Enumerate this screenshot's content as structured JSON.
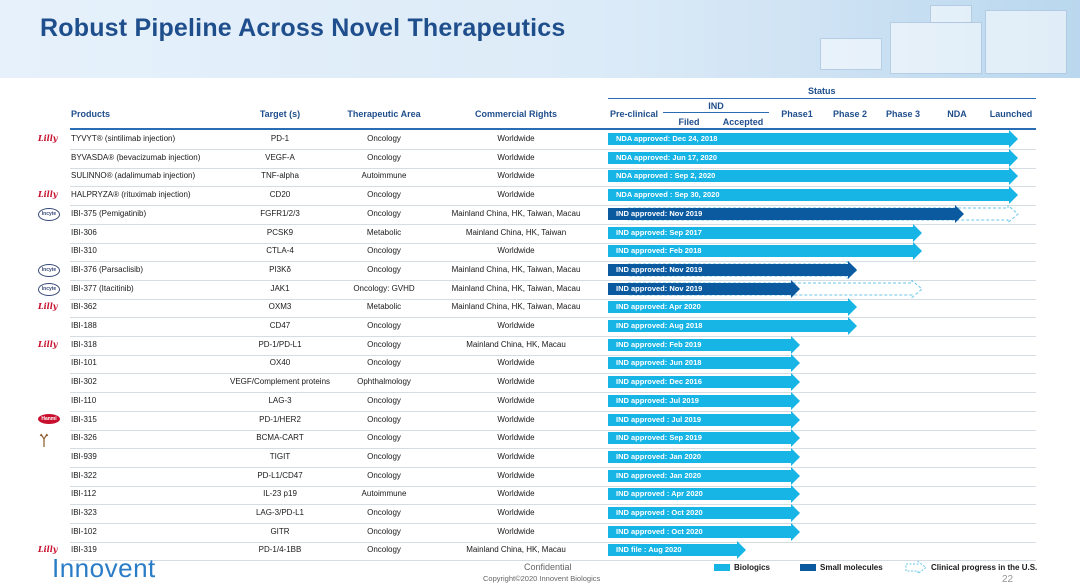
{
  "title": "Robust Pipeline Across Novel Therapeutics",
  "status_label": "Status",
  "ind_label": "IND",
  "columns": {
    "products": "Products",
    "target": "Target (s)",
    "therapeutic_area": "Therapeutic Area",
    "commercial_rights": "Commercial Rights",
    "preclinical": "Pre-clinical",
    "ind_filed": "Filed",
    "ind_accepted": "Accepted",
    "phase1": "Phase1",
    "phase2": "Phase 2",
    "phase3": "Phase 3",
    "nda": "NDA",
    "launched": "Launched"
  },
  "rows": [
    {
      "partner": "Lilly",
      "product": "TYVYT® (sintilimab injection)",
      "target": "PD-1",
      "area": "Oncology",
      "rights": "Worldwide",
      "status": "NDA approved: Dec 24, 2018",
      "stage": "Launched",
      "modality": "biologics",
      "us_progress": ""
    },
    {
      "partner": "",
      "product": "BYVASDA® (bevacizumab  injection)",
      "target": "VEGF-A",
      "area": "Oncology",
      "rights": "Worldwide",
      "status": "NDA approved: Jun 17, 2020",
      "stage": "Launched",
      "modality": "biologics",
      "us_progress": ""
    },
    {
      "partner": "",
      "product": "SULINNO® (adalimumab injection)",
      "target": "TNF-alpha",
      "area": "Autoimmune",
      "rights": "Worldwide",
      "status": "NDA approved : Sep 2, 2020",
      "stage": "Launched",
      "modality": "biologics",
      "us_progress": ""
    },
    {
      "partner": "Lilly",
      "product": "HALPRYZA® (rituximab injection)",
      "target": "CD20",
      "area": "Oncology",
      "rights": "Worldwide",
      "status": "NDA approved : Sep 30, 2020",
      "stage": "Launched",
      "modality": "biologics",
      "us_progress": ""
    },
    {
      "partner": "Incyte",
      "product": "IBI-375 (Pemigatinib)",
      "target": "FGFR1/2/3",
      "area": "Oncology",
      "rights": "Mainland China, HK, Taiwan, Macau",
      "status": "IND approved:  Nov 2019",
      "stage": "NDA",
      "modality": "small_molecules",
      "us_progress": "Launched"
    },
    {
      "partner": "",
      "product": "IBI-306",
      "target": "PCSK9",
      "area": "Metabolic",
      "rights": "Mainland China, HK, Taiwan",
      "status": "IND approved: Sep 2017",
      "stage": "Phase 3",
      "modality": "biologics",
      "us_progress": ""
    },
    {
      "partner": "",
      "product": "IBI-310",
      "target": "CTLA-4",
      "area": "Oncology",
      "rights": "Worldwide",
      "status": "IND approved: Feb 2018",
      "stage": "Phase 3",
      "modality": "biologics",
      "us_progress": ""
    },
    {
      "partner": "Incyte",
      "product": "IBI-376 (Parsaclisib)",
      "target": "PI3Kδ",
      "area": "Oncology",
      "rights": "Mainland China, HK, Taiwan, Macau",
      "status": "IND approved:  Nov 2019",
      "stage": "Phase 2",
      "modality": "small_molecules",
      "us_progress": "Phase 2"
    },
    {
      "partner": "Incyte",
      "product": "IBI-377 (Itacitinib)",
      "target": "JAK1",
      "area": "Oncology: GVHD",
      "rights": "Mainland China, HK, Taiwan, Macau",
      "status": "IND approved:  Nov 2019",
      "stage": "Phase1",
      "modality": "small_molecules",
      "us_progress": "Phase 3"
    },
    {
      "partner": "Lilly",
      "product": "IBI-362",
      "target": "OXM3",
      "area": "Metabolic",
      "rights": "Mainland China, HK, Taiwan, Macau",
      "status": "IND approved:  Apr 2020",
      "stage": "Phase 2",
      "modality": "biologics",
      "us_progress": ""
    },
    {
      "partner": "",
      "product": "IBI-188",
      "target": "CD47",
      "area": "Oncology",
      "rights": "Worldwide",
      "status": "IND approved:  Aug 2018",
      "stage": "Phase 2",
      "modality": "biologics",
      "us_progress": ""
    },
    {
      "partner": "Lilly",
      "product": "IBI-318",
      "target": "PD-1/PD-L1",
      "area": "Oncology",
      "rights": "Mainland China, HK, Macau",
      "status": "IND approved:  Feb 2019",
      "stage": "Phase1",
      "modality": "biologics",
      "us_progress": ""
    },
    {
      "partner": "",
      "product": "IBI-101",
      "target": "OX40",
      "area": "Oncology",
      "rights": "Worldwide",
      "status": "IND approved:  Jun 2018",
      "stage": "Phase1",
      "modality": "biologics",
      "us_progress": ""
    },
    {
      "partner": "",
      "product": "IBI-302",
      "target": "VEGF/Complement proteins",
      "area": "Ophthalmology",
      "rights": "Worldwide",
      "status": "IND approved:  Dec 2016",
      "stage": "Phase1",
      "modality": "biologics",
      "us_progress": ""
    },
    {
      "partner": "",
      "product": "IBI-110",
      "target": "LAG-3",
      "area": "Oncology",
      "rights": "Worldwide",
      "status": "IND approved:  Jul 2019",
      "stage": "Phase1",
      "modality": "biologics",
      "us_progress": ""
    },
    {
      "partner": "Hanmi",
      "product": "IBI-315",
      "target": "PD-1/HER2",
      "area": "Oncology",
      "rights": "Worldwide",
      "status": "IND approved : Jul 2019",
      "stage": "Phase1",
      "modality": "biologics",
      "us_progress": ""
    },
    {
      "partner": "Deer",
      "product": "IBI-326",
      "target": "BCMA-CART",
      "area": "Oncology",
      "rights": "Worldwide",
      "status": "IND approved:  Sep 2019",
      "stage": "Phase1",
      "modality": "biologics",
      "us_progress": ""
    },
    {
      "partner": "",
      "product": "IBI-939",
      "target": "TIGIT",
      "area": "Oncology",
      "rights": "Worldwide",
      "status": "IND approved:  Jan 2020",
      "stage": "Phase1",
      "modality": "biologics",
      "us_progress": ""
    },
    {
      "partner": "",
      "product": "IBI-322",
      "target": "PD-L1/CD47",
      "area": "Oncology",
      "rights": "Worldwide",
      "status": "IND approved:  Jan 2020",
      "stage": "Phase1",
      "modality": "biologics",
      "us_progress": ""
    },
    {
      "partner": "",
      "product": "IBI-112",
      "target": "IL-23 p19",
      "area": "Autoimmune",
      "rights": "Worldwide",
      "status": "IND approved : Apr 2020",
      "stage": "Phase1",
      "modality": "biologics",
      "us_progress": ""
    },
    {
      "partner": "",
      "product": "IBI-323",
      "target": "LAG-3/PD-L1",
      "area": "Oncology",
      "rights": "Worldwide",
      "status": "IND approved : Oct 2020",
      "stage": "Phase1",
      "modality": "biologics",
      "us_progress": ""
    },
    {
      "partner": "",
      "product": "IBI-102",
      "target": "GITR",
      "area": "Oncology",
      "rights": "Worldwide",
      "status": "IND approved : Oct 2020",
      "stage": "Phase1",
      "modality": "biologics",
      "us_progress": ""
    },
    {
      "partner": "Lilly",
      "product": "IBI-319",
      "target": "PD-1/4-1BB",
      "area": "Oncology",
      "rights": "Mainland China, HK, Macau",
      "status": "IND file : Aug 2020",
      "stage": "IND Accepted",
      "modality": "biologics",
      "us_progress": ""
    }
  ],
  "legend": {
    "biologics": "Biologics",
    "small_molecules": "Small molecules",
    "us_progress": "Clinical progress in the U.S."
  },
  "colors": {
    "biologics": "#17b4e6",
    "small_molecules": "#0b5aa0",
    "title": "#1f4e8c"
  },
  "footer": {
    "brand": "Innovent",
    "confidential": "Confidential",
    "copyright": "Copyright©2020  Innovent Biologics",
    "page": "22"
  }
}
